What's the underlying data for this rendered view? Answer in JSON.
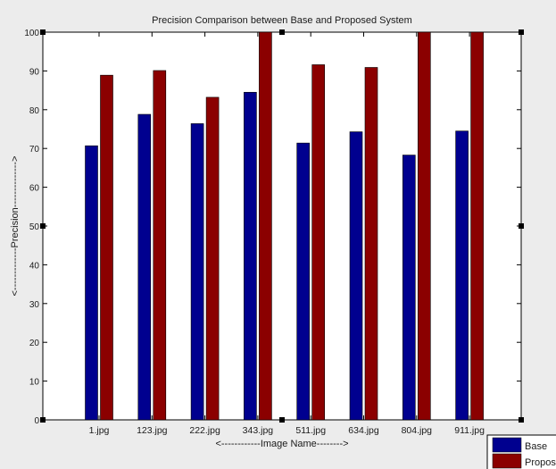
{
  "chart_data": {
    "type": "bar",
    "title": "Precision Comparison between Base and Proposed System",
    "xlabel": "<------------Image Name-------->",
    "ylabel": "<-------------Precision-------------->",
    "categories": [
      "1.jpg",
      "123.jpg",
      "222.jpg",
      "343.jpg",
      "511.jpg",
      "634.jpg",
      "804.jpg",
      "911.jpg"
    ],
    "series": [
      {
        "name": "Base",
        "color": "#00008f",
        "values": [
          70.7,
          78.8,
          76.4,
          84.5,
          71.4,
          74.3,
          68.3,
          74.5
        ]
      },
      {
        "name": "Proposed",
        "color": "#8b0000",
        "values": [
          88.9,
          90.1,
          83.2,
          100,
          91.6,
          90.9,
          100,
          100
        ]
      }
    ],
    "ylim": [
      0,
      100
    ],
    "yticks": [
      0,
      10,
      20,
      30,
      40,
      50,
      60,
      70,
      80,
      90,
      100
    ],
    "grid": false,
    "legend_position": "bottom-right"
  }
}
